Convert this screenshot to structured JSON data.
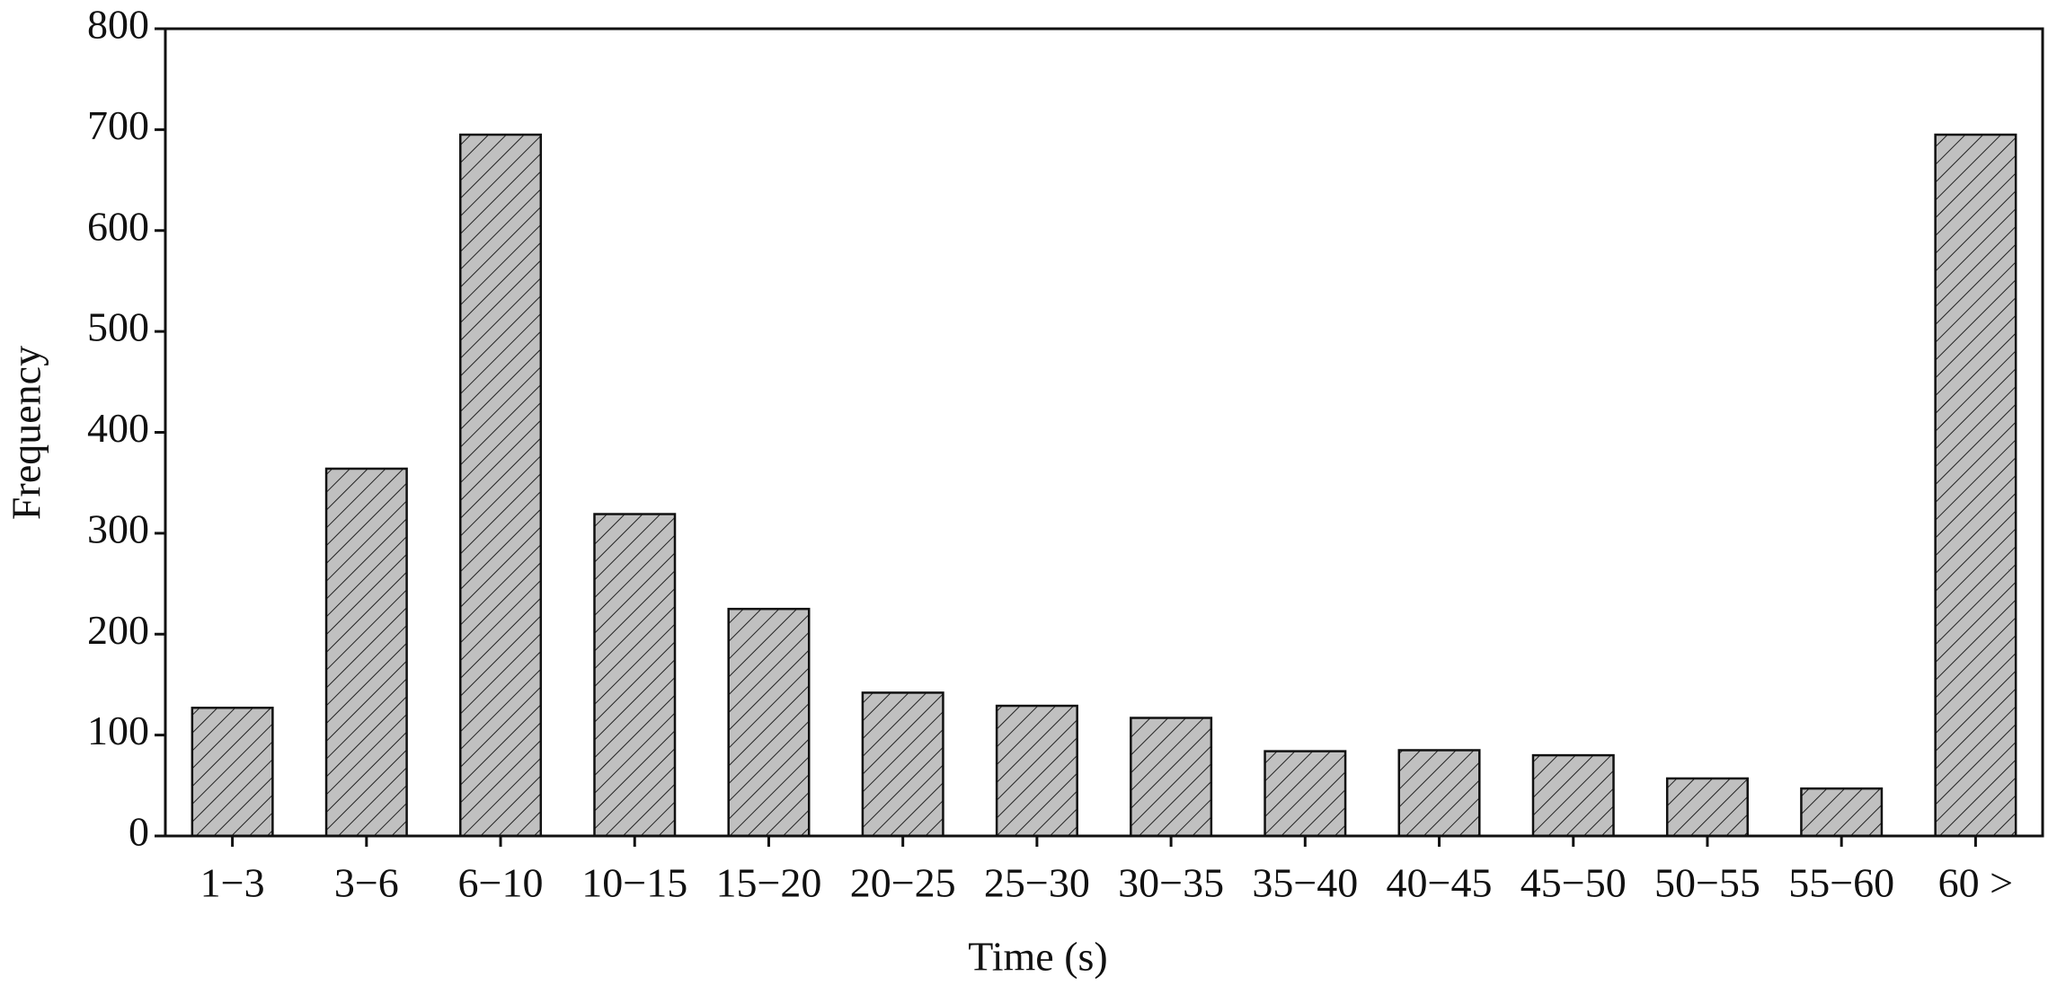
{
  "chart_data": {
    "type": "bar",
    "x_label": "Time (s)",
    "y_label": "Frequency",
    "categories": [
      "1−3",
      "3−6",
      "6−10",
      "10−15",
      "15−20",
      "20−25",
      "25−30",
      "30−35",
      "35−40",
      "40−45",
      "45−50",
      "50−55",
      "55−60",
      "60 >"
    ],
    "values": [
      127,
      364,
      695,
      319,
      225,
      142,
      129,
      117,
      84,
      85,
      80,
      57,
      47,
      695
    ],
    "color": "#c0c0c0",
    "ylim": [
      0,
      800
    ],
    "yticks": [
      0,
      100,
      200,
      300,
      400,
      500,
      600,
      700,
      800
    ],
    "grid": false
  }
}
